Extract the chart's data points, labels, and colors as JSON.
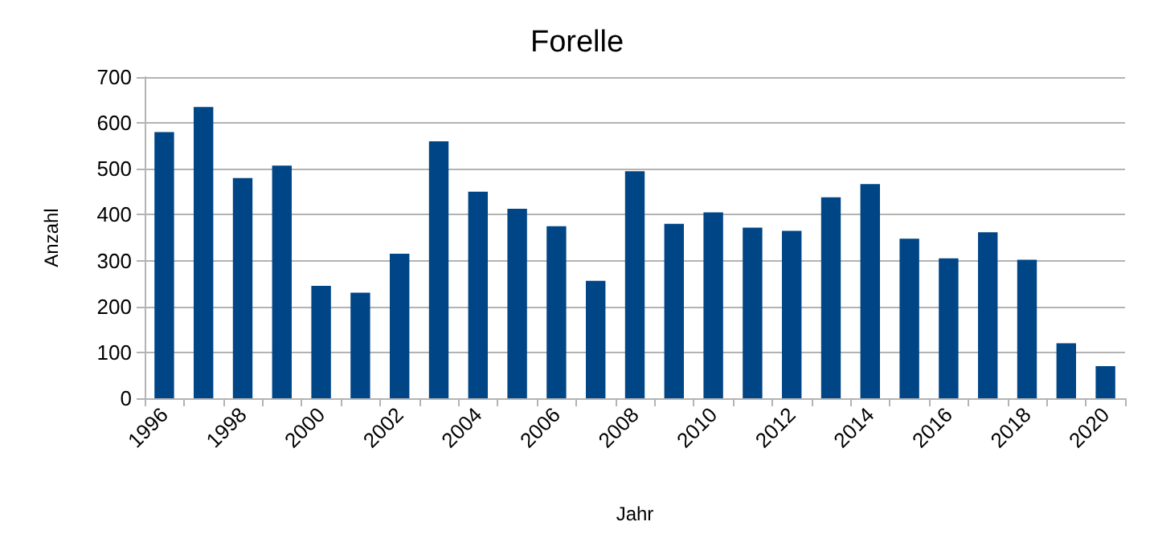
{
  "chart_data": {
    "type": "bar",
    "title": "Forelle",
    "xlabel": "Jahr",
    "ylabel": "Anzahl",
    "categories": [
      "1996",
      null,
      "1998",
      null,
      "2000",
      null,
      "2002",
      null,
      "2004",
      null,
      "2006",
      null,
      "2008",
      null,
      "2010",
      null,
      "2012",
      null,
      "2014",
      null,
      "2016",
      null,
      "2018",
      null,
      "2020"
    ],
    "values": [
      580,
      635,
      480,
      507,
      245,
      230,
      315,
      560,
      450,
      413,
      375,
      256,
      495,
      380,
      405,
      372,
      365,
      438,
      467,
      348,
      305,
      362,
      302,
      120,
      70
    ],
    "color": "#004586",
    "ylim": [
      0,
      700
    ],
    "yticks": [
      0,
      100,
      200,
      300,
      400,
      500,
      600,
      700
    ],
    "grid": "y"
  }
}
